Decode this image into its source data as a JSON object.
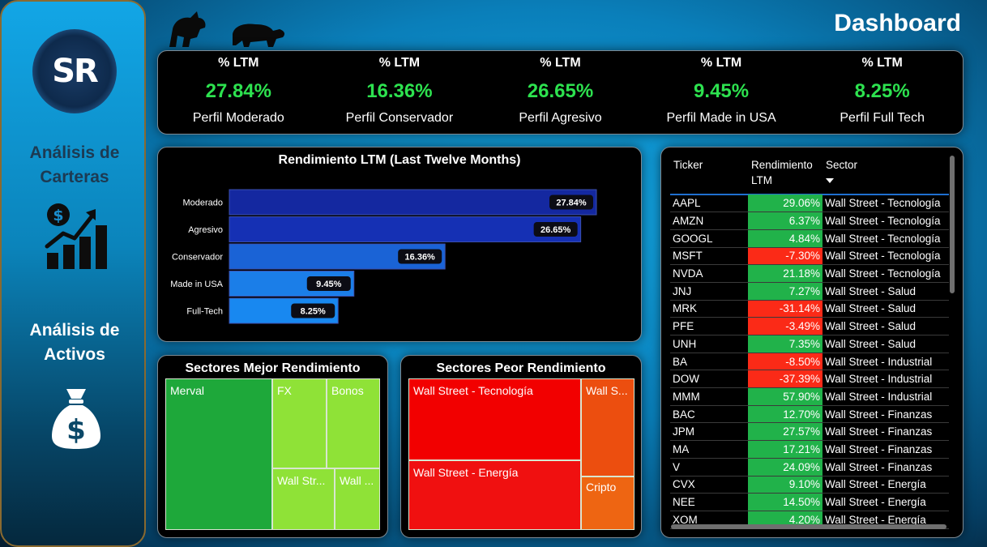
{
  "header": {
    "title": "Dashboard"
  },
  "sidebar": {
    "logo_text": "SR",
    "nav1_line1": "Análisis de",
    "nav1_line2": "Carteras",
    "nav2_line1": "Análisis de",
    "nav2_line2": "Activos",
    "nav1_icon": "growth-chart-dollar-icon",
    "nav2_icon": "money-bag-icon"
  },
  "kpis": [
    {
      "label": "% LTM",
      "value": "27.84%",
      "profile": "Perfil Moderado"
    },
    {
      "label": "% LTM",
      "value": "16.36%",
      "profile": "Perfil Conservador"
    },
    {
      "label": "% LTM",
      "value": "26.65%",
      "profile": "Perfil Agresivo"
    },
    {
      "label": "% LTM",
      "value": "9.45%",
      "profile": "Perfil Made in USA"
    },
    {
      "label": "% LTM",
      "value": "8.25%",
      "profile": "Perfil Full Tech"
    }
  ],
  "chart_data": {
    "type": "bar",
    "orientation": "horizontal",
    "title": "Rendimiento LTM (Last Twelve Months)",
    "categories": [
      "Moderado",
      "Agresivo",
      "Conservador",
      "Made in USA",
      "Full-Tech"
    ],
    "values": [
      27.84,
      26.65,
      16.36,
      9.45,
      8.25
    ],
    "data_labels": [
      "27.84%",
      "26.65%",
      "16.36%",
      "9.45%",
      "8.25%"
    ],
    "colors": [
      "#1428a0",
      "#1530b4",
      "#1a63d6",
      "#1b7ee8",
      "#1888f0"
    ],
    "xlim": [
      0,
      27.84
    ],
    "grid": false,
    "legend": "none"
  },
  "best_sectors": {
    "title": "Sectores Mejor Rendimiento",
    "tiles": [
      {
        "label": "Merval",
        "color": "#1ea83a"
      },
      {
        "label": "FX",
        "color": "#8fe237"
      },
      {
        "label": "Bonos",
        "color": "#8fe237"
      },
      {
        "label": "Wall Str...",
        "color": "#8fe237"
      },
      {
        "label": "Wall ...",
        "color": "#8fe237"
      }
    ]
  },
  "worst_sectors": {
    "title": "Sectores Peor Rendimiento",
    "tiles": [
      {
        "label": "Wall Street - Tecnología",
        "color": "#f20000"
      },
      {
        "label": "Wall S...",
        "color": "#ec4e0f"
      },
      {
        "label": "Wall Street - Energía",
        "color": "#f01010"
      },
      {
        "label": "Cripto",
        "color": "#ee6512"
      }
    ]
  },
  "table": {
    "headers": {
      "ticker": "Ticker",
      "rend1": "Rendimiento",
      "rend2": "LTM",
      "sector": "Sector"
    },
    "colors": {
      "positive": "#21b24a",
      "negative": "#fb2a17"
    },
    "rows": [
      {
        "ticker": "AAPL",
        "value": "29.06%",
        "sector": "Wall Street - Tecnología",
        "sign": "positive"
      },
      {
        "ticker": "AMZN",
        "value": "6.37%",
        "sector": "Wall Street - Tecnología",
        "sign": "positive"
      },
      {
        "ticker": "GOOGL",
        "value": "4.84%",
        "sector": "Wall Street - Tecnología",
        "sign": "positive"
      },
      {
        "ticker": "MSFT",
        "value": "-7.30%",
        "sector": "Wall Street - Tecnología",
        "sign": "negative"
      },
      {
        "ticker": "NVDA",
        "value": "21.18%",
        "sector": "Wall Street - Tecnología",
        "sign": "positive"
      },
      {
        "ticker": "JNJ",
        "value": "7.27%",
        "sector": "Wall Street - Salud",
        "sign": "positive"
      },
      {
        "ticker": "MRK",
        "value": "-31.14%",
        "sector": "Wall Street - Salud",
        "sign": "negative"
      },
      {
        "ticker": "PFE",
        "value": "-3.49%",
        "sector": "Wall Street - Salud",
        "sign": "negative"
      },
      {
        "ticker": "UNH",
        "value": "7.35%",
        "sector": "Wall Street - Salud",
        "sign": "positive"
      },
      {
        "ticker": "BA",
        "value": "-8.50%",
        "sector": "Wall Street - Industrial",
        "sign": "negative"
      },
      {
        "ticker": "DOW",
        "value": "-37.39%",
        "sector": "Wall Street - Industrial",
        "sign": "negative"
      },
      {
        "ticker": "MMM",
        "value": "57.90%",
        "sector": "Wall Street - Industrial",
        "sign": "positive"
      },
      {
        "ticker": "BAC",
        "value": "12.70%",
        "sector": "Wall Street - Finanzas",
        "sign": "positive"
      },
      {
        "ticker": "JPM",
        "value": "27.57%",
        "sector": "Wall Street - Finanzas",
        "sign": "positive"
      },
      {
        "ticker": "MA",
        "value": "17.21%",
        "sector": "Wall Street - Finanzas",
        "sign": "positive"
      },
      {
        "ticker": "V",
        "value": "24.09%",
        "sector": "Wall Street - Finanzas",
        "sign": "positive"
      },
      {
        "ticker": "CVX",
        "value": "9.10%",
        "sector": "Wall Street - Energía",
        "sign": "positive"
      },
      {
        "ticker": "NEE",
        "value": "14.50%",
        "sector": "Wall Street - Energía",
        "sign": "positive"
      },
      {
        "ticker": "XOM",
        "value": "4.20%",
        "sector": "Wall Street - Energía",
        "sign": "positive"
      }
    ]
  }
}
